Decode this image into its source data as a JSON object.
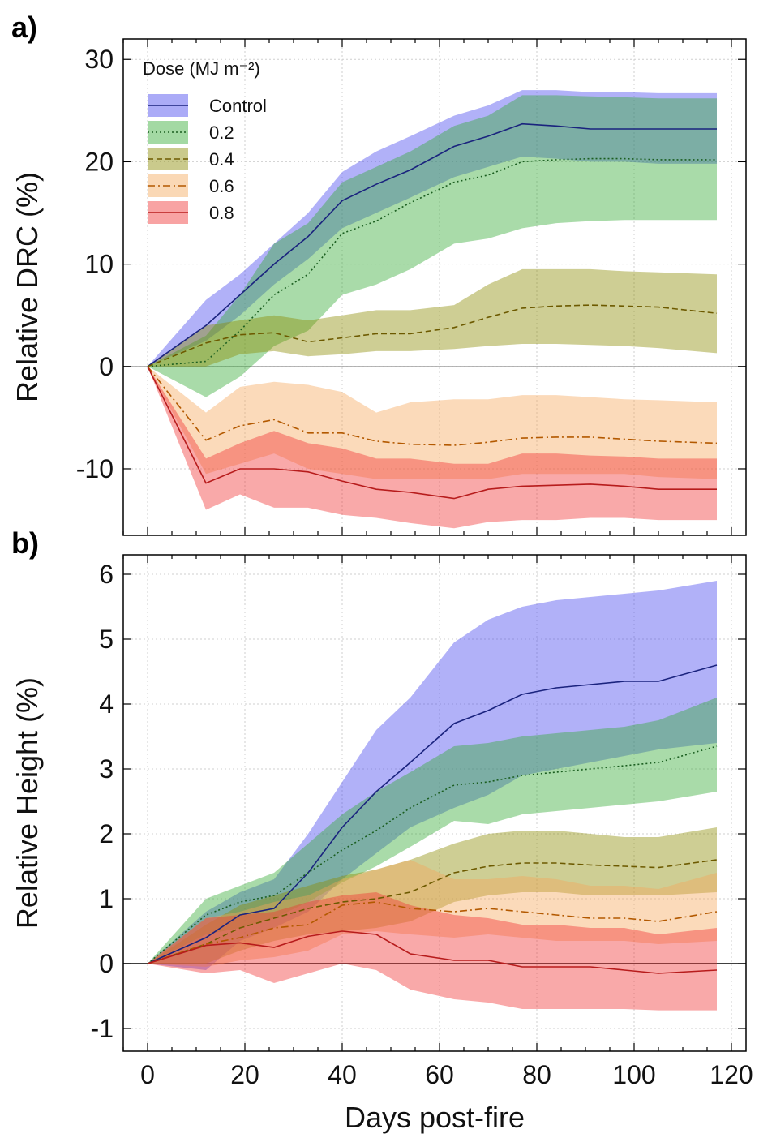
{
  "chart_data": [
    {
      "type": "line",
      "panel_label": "a)",
      "xlabel": "",
      "ylabel": "Relative DRC (%)",
      "xlim": [
        -5,
        123
      ],
      "ylim": [
        -16.5,
        32
      ],
      "xticks": [
        0,
        20,
        40,
        60,
        80,
        100,
        120
      ],
      "yticks": [
        -10,
        0,
        10,
        20,
        30
      ],
      "ytick_labels": [
        "-10",
        "0",
        "10",
        "20",
        "30"
      ],
      "grid": true,
      "zero_line": "gray",
      "legend_title": "Dose (MJ m⁻²)",
      "legend_placement": "top-left",
      "x": [
        0,
        12,
        19,
        26,
        33,
        40,
        47,
        54,
        63,
        70,
        77,
        84,
        91,
        98,
        105,
        117
      ],
      "series": [
        {
          "name": "Control",
          "line": "solid",
          "color": "#1a237e",
          "band_color": "#4444ee",
          "mean": [
            0,
            4,
            7,
            10,
            12.7,
            16.2,
            17.8,
            19.2,
            21.5,
            22.5,
            23.7,
            23.5,
            23.2,
            23.2,
            23.2,
            23.2
          ],
          "lower": [
            0,
            2.5,
            5,
            8,
            10.5,
            13.5,
            15,
            16.5,
            18.5,
            19.5,
            20.5,
            20.3,
            20,
            20,
            19.8,
            19.8
          ],
          "upper": [
            0,
            6.5,
            9,
            12,
            15,
            19,
            21,
            22.5,
            24.5,
            25.5,
            27,
            27,
            26.8,
            26.8,
            26.7,
            26.7
          ]
        },
        {
          "name": "0.2",
          "line": "dotted",
          "color": "#1b5e20",
          "band_color": "#33aa33",
          "mean": [
            0,
            0.5,
            3.5,
            7,
            9,
            13,
            14.2,
            16,
            18,
            18.7,
            20,
            20.2,
            20.3,
            20.3,
            20.2,
            20.2
          ],
          "lower": [
            0,
            -3,
            -1,
            2,
            3.5,
            7,
            8,
            9.5,
            12,
            12.5,
            13.5,
            14,
            14.2,
            14.3,
            14.3,
            14.3
          ],
          "upper": [
            0,
            3,
            7,
            12,
            14,
            18,
            19.5,
            21,
            23.5,
            24.5,
            26.5,
            26.5,
            26.4,
            26.3,
            26.2,
            26.2
          ]
        },
        {
          "name": "0.4",
          "line": "dashed",
          "color": "#6d5a00",
          "band_color": "#8a8a00",
          "mean": [
            0,
            2.3,
            3.1,
            3.3,
            2.4,
            2.8,
            3.2,
            3.2,
            3.8,
            4.8,
            5.7,
            5.9,
            6,
            5.9,
            5.8,
            5.2
          ],
          "lower": [
            0,
            0,
            1.2,
            1.5,
            1,
            1.2,
            1.5,
            1.5,
            1.7,
            2,
            2.2,
            2.2,
            2.1,
            2,
            1.8,
            1.3
          ],
          "upper": [
            0,
            4,
            4.5,
            5,
            4.5,
            5,
            5.5,
            5.5,
            6,
            8,
            9.5,
            9.5,
            9.5,
            9.3,
            9.2,
            9
          ]
        },
        {
          "name": "0.6",
          "line": "dashdot",
          "color": "#b35900",
          "band_color": "#f5a85a",
          "mean": [
            0,
            -7.2,
            -5.8,
            -5.2,
            -6.5,
            -6.5,
            -7.3,
            -7.6,
            -7.7,
            -7.4,
            -7,
            -6.9,
            -6.9,
            -7.1,
            -7.3,
            -7.5
          ],
          "lower": [
            0,
            -10.5,
            -9.5,
            -8.5,
            -10,
            -10.5,
            -11,
            -11,
            -11,
            -11,
            -10.5,
            -10.5,
            -10.5,
            -10.5,
            -10.8,
            -11
          ],
          "upper": [
            0,
            -4.5,
            -2,
            -1.5,
            -1.8,
            -2.5,
            -4.5,
            -3.5,
            -3.2,
            -3.2,
            -2.8,
            -2.8,
            -3,
            -3.2,
            -3.3,
            -3.5
          ]
        },
        {
          "name": "0.8",
          "line": "solid",
          "color": "#b71c1c",
          "band_color": "#f03333",
          "mean": [
            0,
            -11.4,
            -10,
            -10,
            -10.3,
            -11.2,
            -12,
            -12.3,
            -12.9,
            -12,
            -11.7,
            -11.6,
            -11.5,
            -11.7,
            -12,
            -12
          ],
          "lower": [
            0,
            -14,
            -12.5,
            -13.8,
            -13.8,
            -14.5,
            -14.8,
            -15.3,
            -15.8,
            -15.2,
            -15,
            -15,
            -14.8,
            -14.8,
            -15,
            -15
          ],
          "upper": [
            0,
            -9,
            -7.5,
            -6.3,
            -7.5,
            -8,
            -9,
            -9,
            -9.5,
            -9.5,
            -8.5,
            -8.5,
            -8.7,
            -8.8,
            -9,
            -9
          ]
        }
      ]
    },
    {
      "type": "line",
      "panel_label": "b)",
      "xlabel": "Days post-fire",
      "ylabel": "Relative Height (%)",
      "xlim": [
        -5,
        123
      ],
      "ylim": [
        -1.35,
        6.3
      ],
      "xticks": [
        0,
        20,
        40,
        60,
        80,
        100,
        120
      ],
      "xtick_labels": [
        "0",
        "20",
        "40",
        "60",
        "80",
        "100",
        "120"
      ],
      "yticks": [
        -1,
        0,
        1,
        2,
        3,
        4,
        5,
        6
      ],
      "ytick_labels": [
        "-1",
        "0",
        "1",
        "2",
        "3",
        "4",
        "5",
        "6"
      ],
      "grid": true,
      "zero_line": "black",
      "x": [
        0,
        12,
        19,
        26,
        33,
        40,
        47,
        54,
        63,
        70,
        77,
        84,
        91,
        98,
        105,
        117
      ],
      "series": [
        {
          "name": "Control",
          "line": "solid",
          "color": "#1a237e",
          "band_color": "#4444ee",
          "mean": [
            0,
            0.4,
            0.75,
            0.85,
            1.4,
            2.1,
            2.65,
            3.1,
            3.7,
            3.9,
            4.15,
            4.25,
            4.3,
            4.35,
            4.35,
            4.6
          ],
          "lower": [
            0,
            -0.1,
            0.35,
            0.55,
            0.8,
            1.3,
            1.7,
            2.1,
            2.4,
            2.6,
            2.9,
            3,
            3.1,
            3.2,
            3.3,
            3.4
          ],
          "upper": [
            0,
            0.8,
            1.1,
            1.3,
            2,
            2.8,
            3.6,
            4.1,
            4.95,
            5.3,
            5.5,
            5.6,
            5.65,
            5.7,
            5.75,
            5.9
          ]
        },
        {
          "name": "0.2",
          "line": "dotted",
          "color": "#1b5e20",
          "band_color": "#33aa33",
          "mean": [
            0,
            0.75,
            0.95,
            1.05,
            1.4,
            1.75,
            2.05,
            2.4,
            2.75,
            2.8,
            2.9,
            2.95,
            3,
            3.05,
            3.1,
            3.35
          ],
          "lower": [
            0,
            0.45,
            0.55,
            0.7,
            0.95,
            1.25,
            1.5,
            1.8,
            2.2,
            2.15,
            2.3,
            2.35,
            2.4,
            2.45,
            2.5,
            2.65
          ],
          "upper": [
            0,
            1,
            1.2,
            1.4,
            1.85,
            2.3,
            2.65,
            2.95,
            3.35,
            3.4,
            3.5,
            3.55,
            3.6,
            3.65,
            3.75,
            4.1
          ]
        },
        {
          "name": "0.4",
          "line": "dashed",
          "color": "#6d5a00",
          "band_color": "#8a8a00",
          "mean": [
            0,
            0.3,
            0.55,
            0.7,
            0.85,
            0.95,
            1,
            1.1,
            1.4,
            1.5,
            1.55,
            1.55,
            1.52,
            1.5,
            1.48,
            1.6
          ],
          "lower": [
            0,
            0,
            0.2,
            0.35,
            0.45,
            0.5,
            0.55,
            0.65,
            0.95,
            1.05,
            1.1,
            1.1,
            1.05,
            1.05,
            1.05,
            1.1
          ],
          "upper": [
            0,
            0.6,
            0.9,
            1.05,
            1.2,
            1.35,
            1.45,
            1.6,
            1.85,
            2,
            2.05,
            2.05,
            2,
            1.95,
            1.95,
            2.1
          ]
        },
        {
          "name": "0.6",
          "line": "dashdot",
          "color": "#b35900",
          "band_color": "#f5a85a",
          "mean": [
            0,
            0.3,
            0.4,
            0.55,
            0.6,
            0.9,
            0.95,
            0.85,
            0.8,
            0.85,
            0.8,
            0.75,
            0.7,
            0.7,
            0.65,
            0.8
          ],
          "lower": [
            0,
            -0.05,
            0.05,
            0.1,
            0.2,
            0.45,
            0.5,
            0.45,
            0.4,
            0.45,
            0.4,
            0.35,
            0.35,
            0.35,
            0.3,
            0.35
          ],
          "upper": [
            0,
            0.7,
            0.8,
            0.95,
            1.05,
            1.3,
            1.45,
            1.6,
            1.3,
            1.3,
            1.35,
            1.3,
            1.2,
            1.2,
            1.15,
            1.4
          ]
        },
        {
          "name": "0.8",
          "line": "solid",
          "color": "#b71c1c",
          "band_color": "#f03333",
          "mean": [
            0,
            0.28,
            0.32,
            0.25,
            0.42,
            0.5,
            0.45,
            0.15,
            0.05,
            0.05,
            -0.05,
            -0.05,
            -0.05,
            -0.1,
            -0.15,
            -0.1
          ],
          "lower": [
            0,
            -0.15,
            -0.1,
            -0.3,
            -0.15,
            0,
            -0.1,
            -0.4,
            -0.55,
            -0.6,
            -0.7,
            -0.7,
            -0.7,
            -0.7,
            -0.72,
            -0.72
          ],
          "upper": [
            0,
            0.7,
            0.75,
            0.8,
            0.95,
            1.05,
            1.1,
            0.9,
            0.75,
            0.7,
            0.6,
            0.6,
            0.55,
            0.55,
            0.45,
            0.55
          ]
        }
      ]
    }
  ]
}
